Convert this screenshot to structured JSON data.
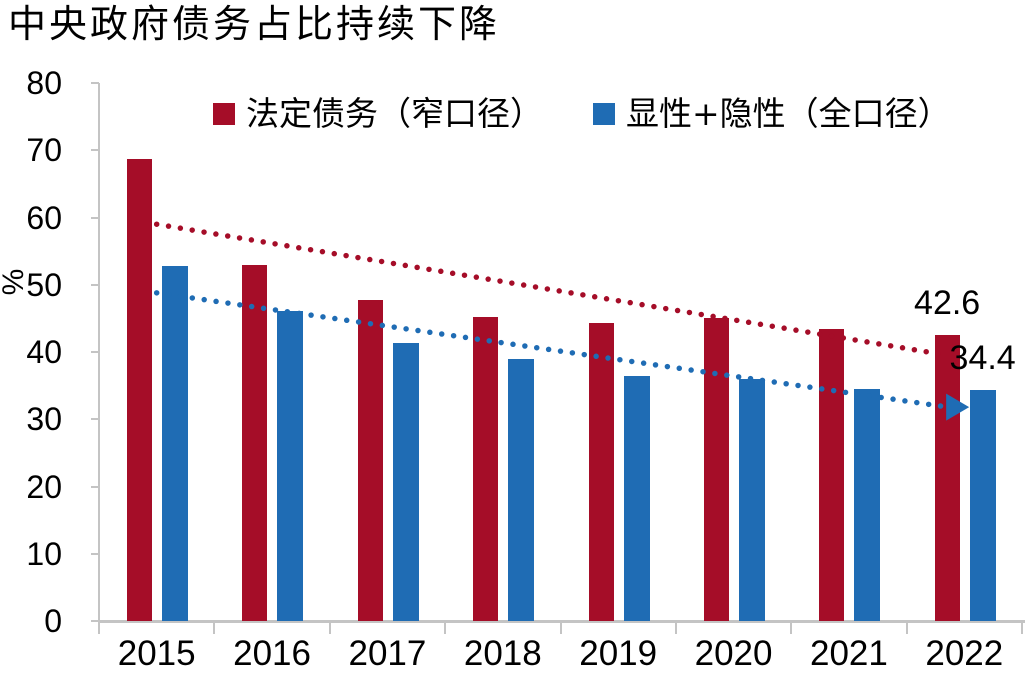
{
  "title": "中央政府债务占比持续下降",
  "chart_data": {
    "type": "bar",
    "title": "中央政府债务占比持续下降",
    "categories": [
      "2015",
      "2016",
      "2017",
      "2018",
      "2019",
      "2020",
      "2021",
      "2022"
    ],
    "series": [
      {
        "name": "法定债务（窄口径）",
        "color": "#A50D28",
        "values": [
          68.7,
          53.0,
          47.7,
          45.2,
          44.3,
          45.0,
          43.4,
          42.6
        ]
      },
      {
        "name": "显性+隐性（全口径）",
        "color": "#1F6CB4",
        "values": [
          52.8,
          46.1,
          41.4,
          38.9,
          36.4,
          36.0,
          34.5,
          34.4
        ]
      }
    ],
    "xlabel": "",
    "ylabel": "%",
    "ylim": [
      0,
      80
    ],
    "yticks": [
      0,
      10,
      20,
      30,
      40,
      50,
      60,
      70,
      80
    ],
    "grid": false,
    "legend_position": "top",
    "axis_color": "#C4C4C4",
    "annotations": [
      {
        "text": "42.6",
        "series": 0,
        "category_index": 7
      },
      {
        "text": "34.4",
        "series": 1,
        "category_index": 7
      }
    ],
    "trendlines": [
      {
        "name": "法定债务趋势线",
        "color": "#A50D28",
        "style": "dotted",
        "from": {
          "x": 0.0,
          "y": 59.0
        },
        "to": {
          "x": 6.79,
          "y": 39.7
        },
        "arrow": false
      },
      {
        "name": "显性+隐性趋势线",
        "color": "#1F6CB4",
        "style": "dotted",
        "from": {
          "x": 0.0,
          "y": 48.8
        },
        "to": {
          "x": 6.86,
          "y": 31.8
        },
        "arrow": true
      }
    ]
  }
}
